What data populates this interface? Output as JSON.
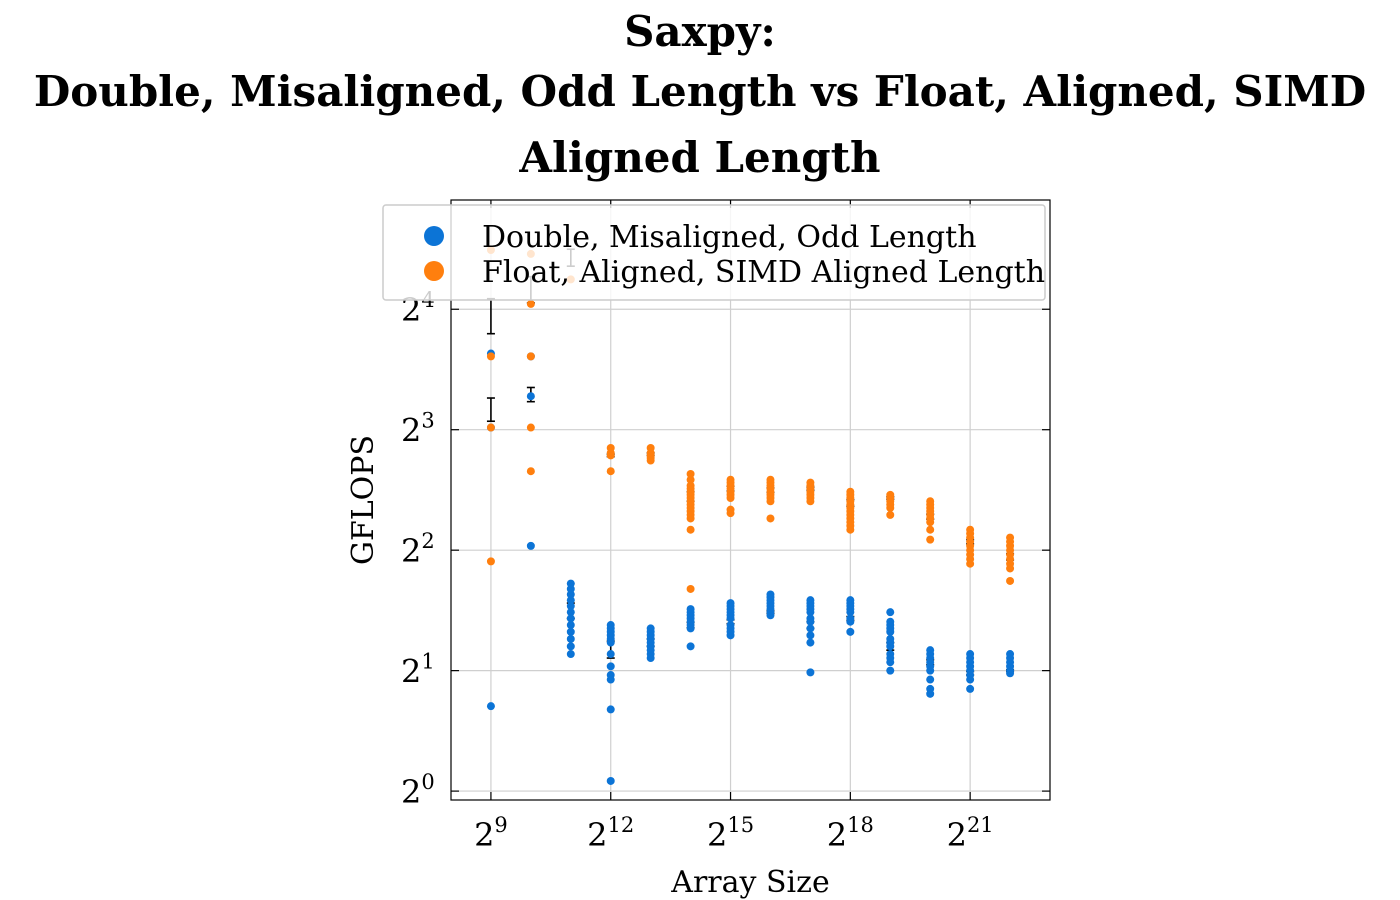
{
  "title": {
    "line1": "Saxpy:",
    "line2": "Double, Misaligned, Odd Length vs Float, Aligned, SIMD",
    "line3": "Aligned Length"
  },
  "chart_data": {
    "type": "scatter",
    "title": "Saxpy: Double, Misaligned, Odd Length vs Float, Aligned, SIMD Aligned Length",
    "xlabel": "Array Size",
    "ylabel": "GFLOPS",
    "xscale": "log2",
    "yscale": "log2",
    "xlim": [
      256,
      8388608
    ],
    "ylim": [
      0.95,
      30
    ],
    "xticks": [
      {
        "value": 512,
        "base": "2",
        "exp": "9"
      },
      {
        "value": 4096,
        "base": "2",
        "exp": "12"
      },
      {
        "value": 32768,
        "base": "2",
        "exp": "15"
      },
      {
        "value": 262144,
        "base": "2",
        "exp": "18"
      },
      {
        "value": 2097152,
        "base": "2",
        "exp": "21"
      }
    ],
    "yticks": [
      {
        "value": 1,
        "base": "2",
        "exp": "0"
      },
      {
        "value": 2,
        "base": "2",
        "exp": "1"
      },
      {
        "value": 4,
        "base": "2",
        "exp": "2"
      },
      {
        "value": 8,
        "base": "2",
        "exp": "3"
      },
      {
        "value": 16,
        "base": "2",
        "exp": "4"
      }
    ],
    "grid": true,
    "legend_position": "top-right",
    "series": [
      {
        "name": "Double, Misaligned, Odd Length",
        "color": "#0c74d6",
        "points": [
          {
            "x": 512,
            "ys": [
              1.63,
              8.1,
              12.4
            ]
          },
          {
            "x": 1024,
            "ys": [
              4.1,
              9.7,
              12.2
            ]
          },
          {
            "x": 2048,
            "ys": [
              2.2,
              2.3,
              2.4,
              2.5,
              2.6,
              2.7,
              2.8,
              2.9,
              3.0,
              3.1,
              3.2,
              3.3
            ]
          },
          {
            "x": 4096,
            "ys": [
              1.06,
              1.6,
              1.9,
              1.95,
              2.05,
              2.2,
              2.35,
              2.4,
              2.45,
              2.5,
              2.55,
              2.6
            ]
          },
          {
            "x": 8192,
            "ys": [
              2.15,
              2.2,
              2.25,
              2.3,
              2.35,
              2.4,
              2.45,
              2.5,
              2.55
            ]
          },
          {
            "x": 16384,
            "ys": [
              2.3,
              2.55,
              2.6,
              2.65,
              2.7,
              2.75,
              2.8,
              2.85
            ]
          },
          {
            "x": 32768,
            "ys": [
              2.45,
              2.5,
              2.55,
              2.6,
              2.7,
              2.75,
              2.8,
              2.85,
              2.9,
              2.95
            ]
          },
          {
            "x": 65536,
            "ys": [
              2.75,
              2.8,
              2.85,
              2.9,
              2.95,
              3.0,
              3.05,
              3.1
            ]
          },
          {
            "x": 131072,
            "ys": [
              1.98,
              2.35,
              2.45,
              2.55,
              2.65,
              2.7,
              2.8,
              2.85,
              2.9,
              2.95,
              3.0
            ]
          },
          {
            "x": 262144,
            "ys": [
              2.5,
              2.65,
              2.7,
              2.8,
              2.85,
              2.9,
              2.95,
              3.0
            ]
          },
          {
            "x": 524288,
            "ys": [
              2.0,
              2.1,
              2.15,
              2.2,
              2.3,
              2.35,
              2.4,
              2.5,
              2.55,
              2.6,
              2.65,
              2.8
            ]
          },
          {
            "x": 1048576,
            "ys": [
              1.75,
              1.8,
              1.9,
              2.0,
              2.05,
              2.1,
              2.15,
              2.2,
              2.25
            ]
          },
          {
            "x": 2097152,
            "ys": [
              1.8,
              1.9,
              1.95,
              2.0,
              2.05,
              2.1,
              2.15,
              2.2
            ]
          },
          {
            "x": 4194304,
            "ys": [
              1.97,
              2.0,
              2.05,
              2.1,
              2.15,
              2.2
            ]
          }
        ],
        "errorbars": [
          {
            "x": 512,
            "y": 9.0,
            "lo": 8.4,
            "hi": 9.6
          },
          {
            "x": 1024,
            "y": 9.7,
            "lo": 9.4,
            "hi": 10.2
          },
          {
            "x": 2048,
            "y": 2.8,
            "lo": 2.7,
            "hi": 2.95
          },
          {
            "x": 4096,
            "y": 2.25,
            "lo": 2.15,
            "hi": 2.37
          },
          {
            "x": 8192,
            "y": 2.35,
            "lo": 2.3,
            "hi": 2.4
          },
          {
            "x": 16384,
            "y": 2.6,
            "lo": 2.56,
            "hi": 2.64
          },
          {
            "x": 32768,
            "y": 2.65,
            "lo": 2.62,
            "hi": 2.68
          },
          {
            "x": 65536,
            "y": 2.8,
            "lo": 2.78,
            "hi": 2.82
          },
          {
            "x": 131072,
            "y": 2.6,
            "lo": 2.55,
            "hi": 2.65
          },
          {
            "x": 262144,
            "y": 2.7,
            "lo": 2.67,
            "hi": 2.73
          },
          {
            "x": 524288,
            "y": 2.3,
            "lo": 2.25,
            "hi": 2.35
          },
          {
            "x": 1048576,
            "y": 2.1,
            "lo": 2.07,
            "hi": 2.13
          },
          {
            "x": 2097152,
            "y": 1.97,
            "lo": 1.95,
            "hi": 1.99
          },
          {
            "x": 4194304,
            "y": 2.0,
            "lo": 1.99,
            "hi": 2.01
          }
        ]
      },
      {
        "name": "Float, Aligned, SIMD Aligned Length",
        "color": "#ff7f0e",
        "points": [
          {
            "x": 512,
            "ys": [
              3.75,
              8.1,
              12.2,
              22.5
            ]
          },
          {
            "x": 1024,
            "ys": [
              6.3,
              8.1,
              12.2,
              16.5,
              22.0
            ]
          },
          {
            "x": 2048,
            "ys": [
              19.0
            ]
          },
          {
            "x": 4096,
            "ys": [
              6.3,
              6.9,
              7.0,
              7.2
            ]
          },
          {
            "x": 8192,
            "ys": [
              6.7,
              6.8,
              6.9,
              7.0,
              7.2
            ]
          },
          {
            "x": 16384,
            "ys": [
              3.2,
              4.5,
              4.8,
              4.9,
              5.0,
              5.1,
              5.2,
              5.3,
              5.4,
              5.5,
              5.6,
              5.7,
              5.8,
              6.0,
              6.2
            ]
          },
          {
            "x": 32768,
            "ys": [
              4.95,
              5.05,
              5.4,
              5.5,
              5.6,
              5.7,
              5.8,
              5.9,
              6.0
            ]
          },
          {
            "x": 65536,
            "ys": [
              4.8,
              5.3,
              5.4,
              5.5,
              5.6,
              5.7,
              5.8,
              5.9,
              6.0
            ]
          },
          {
            "x": 131072,
            "ys": [
              5.3,
              5.4,
              5.5,
              5.6,
              5.7,
              5.8,
              5.9
            ]
          },
          {
            "x": 262144,
            "ys": [
              4.5,
              4.6,
              4.7,
              4.8,
              4.9,
              5.0,
              5.1,
              5.2,
              5.3,
              5.4,
              5.5,
              5.6
            ]
          },
          {
            "x": 524288,
            "ys": [
              4.9,
              5.1,
              5.2,
              5.3,
              5.4,
              5.5
            ]
          },
          {
            "x": 1048576,
            "ys": [
              4.25,
              4.5,
              4.7,
              4.8,
              4.9,
              5.0,
              5.1,
              5.2,
              5.3
            ]
          },
          {
            "x": 2097152,
            "ys": [
              3.7,
              3.8,
              3.9,
              4.0,
              4.1,
              4.2,
              4.3,
              4.4,
              4.5
            ]
          },
          {
            "x": 4194304,
            "ys": [
              3.35,
              3.6,
              3.7,
              3.8,
              3.9,
              4.0,
              4.1,
              4.2,
              4.3
            ]
          }
        ],
        "errorbars": [
          {
            "x": 512,
            "y": 15.4,
            "lo": 13.9,
            "hi": 17.0
          },
          {
            "x": 1024,
            "y": 17.8,
            "lo": 16.6,
            "hi": 19.3
          },
          {
            "x": 2048,
            "y": 21.5,
            "lo": 20.5,
            "hi": 22.6
          },
          {
            "x": 4096,
            "y": 6.9,
            "lo": 6.85,
            "hi": 6.95
          },
          {
            "x": 8192,
            "y": 6.95,
            "lo": 6.9,
            "hi": 7.0
          },
          {
            "x": 16384,
            "y": 5.45,
            "lo": 5.3,
            "hi": 5.6
          },
          {
            "x": 32768,
            "y": 5.7,
            "lo": 5.62,
            "hi": 5.78
          },
          {
            "x": 65536,
            "y": 5.65,
            "lo": 5.58,
            "hi": 5.72
          },
          {
            "x": 131072,
            "y": 5.7,
            "lo": 5.65,
            "hi": 5.75
          },
          {
            "x": 262144,
            "y": 5.25,
            "lo": 5.15,
            "hi": 5.35
          },
          {
            "x": 524288,
            "y": 5.4,
            "lo": 5.36,
            "hi": 5.44
          },
          {
            "x": 1048576,
            "y": 4.85,
            "lo": 4.78,
            "hi": 4.92
          },
          {
            "x": 2097152,
            "y": 4.2,
            "lo": 4.15,
            "hi": 4.25
          },
          {
            "x": 4194304,
            "y": 3.85,
            "lo": 3.78,
            "hi": 3.92
          }
        ]
      }
    ]
  }
}
